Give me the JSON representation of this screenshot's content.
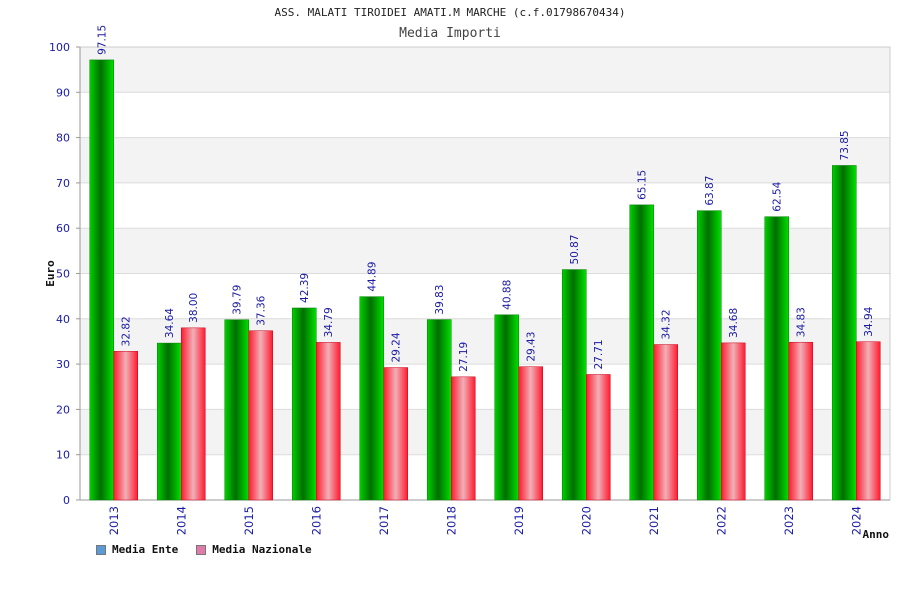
{
  "chart_data": {
    "type": "bar",
    "title": "ASS. MALATI TIROIDEI AMATI.M MARCHE (c.f.01798670434)",
    "subtitle": "Media Importi",
    "xlabel": "Anno",
    "ylabel": "Euro",
    "ylim": [
      0,
      100
    ],
    "yticks": [
      0,
      10,
      20,
      30,
      40,
      50,
      60,
      70,
      80,
      90,
      100
    ],
    "categories": [
      "2013",
      "2014",
      "2015",
      "2016",
      "2017",
      "2018",
      "2019",
      "2020",
      "2021",
      "2022",
      "2023",
      "2024"
    ],
    "series": [
      {
        "name": "Media Ente",
        "values": [
          97.15,
          34.64,
          39.79,
          42.39,
          44.89,
          39.83,
          40.88,
          50.87,
          65.15,
          63.87,
          62.54,
          73.85
        ],
        "labels": [
          "97.15",
          "34.64",
          "39.79",
          "42.39",
          "44.89",
          "39.83",
          "40.88",
          "50.87",
          "65.15",
          "63.87",
          "62.54",
          "73.85"
        ]
      },
      {
        "name": "Media Nazionale",
        "values": [
          32.82,
          38.0,
          37.36,
          34.79,
          29.24,
          27.19,
          29.43,
          27.71,
          34.32,
          34.68,
          34.83,
          34.94
        ],
        "labels": [
          "32.82",
          "38.00",
          "37.36",
          "34.79",
          "29.24",
          "27.19",
          "29.43",
          "27.71",
          "34.32",
          "34.68",
          "34.83",
          "34.94"
        ]
      }
    ],
    "grid": true,
    "legend_position": "bottom-left",
    "colors": {
      "ente": "#00b000",
      "nazionale": "#e8102a",
      "legend_ente": "#5b9bd5",
      "legend_nazionale": "#e07aa8",
      "axis_text": "#1a1aa6"
    }
  }
}
